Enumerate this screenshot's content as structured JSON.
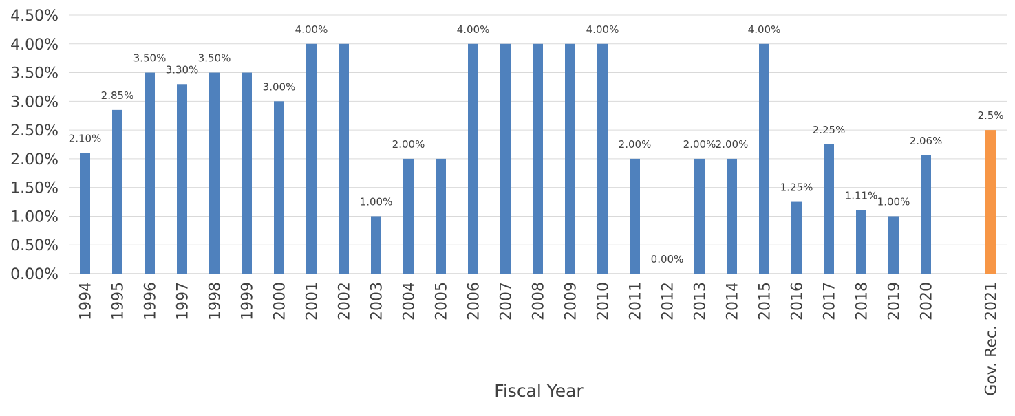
{
  "chart_data": {
    "type": "bar",
    "title": "",
    "xlabel": "Fiscal Year",
    "ylabel": "",
    "ylim": [
      0,
      0.045
    ],
    "ytick_step": 0.005,
    "ytick_format": "percent_2dp",
    "grid": true,
    "legend": "none",
    "categories": [
      "1994",
      "1995",
      "1996",
      "1997",
      "1998",
      "1999",
      "2000",
      "2001",
      "2002",
      "2003",
      "2004",
      "2005",
      "2006",
      "2007",
      "2008",
      "2009",
      "2010",
      "2011",
      "2012",
      "2013",
      "2014",
      "2015",
      "2016",
      "2017",
      "2018",
      "2019",
      "2020",
      "",
      "Gov. Rec. 2021"
    ],
    "values": [
      0.021,
      0.0285,
      0.035,
      0.033,
      0.035,
      0.035,
      0.03,
      0.04,
      0.04,
      0.01,
      0.02,
      0.02,
      0.04,
      0.04,
      0.04,
      0.04,
      0.04,
      0.02,
      0.0,
      0.02,
      0.02,
      0.04,
      0.0125,
      0.0225,
      0.0111,
      0.01,
      0.0206,
      null,
      0.025
    ],
    "data_labels": [
      "2.10%",
      "2.85%",
      "3.50%",
      "3.30%",
      "3.50%",
      "",
      "3.00%",
      "4.00%",
      "",
      "1.00%",
      "2.00%",
      "",
      "4.00%",
      "",
      "",
      "",
      "4.00%",
      "2.00%",
      "0.00%",
      "2.00%",
      "2.00%",
      "4.00%",
      "1.25%",
      "2.25%",
      "1.11%",
      "1.00%",
      "2.06%",
      "",
      "2.5%"
    ],
    "colors": {
      "default": "#4f81bd",
      "highlight": "#f79646"
    },
    "highlight_categories": [
      "Gov. Rec. 2021"
    ]
  }
}
